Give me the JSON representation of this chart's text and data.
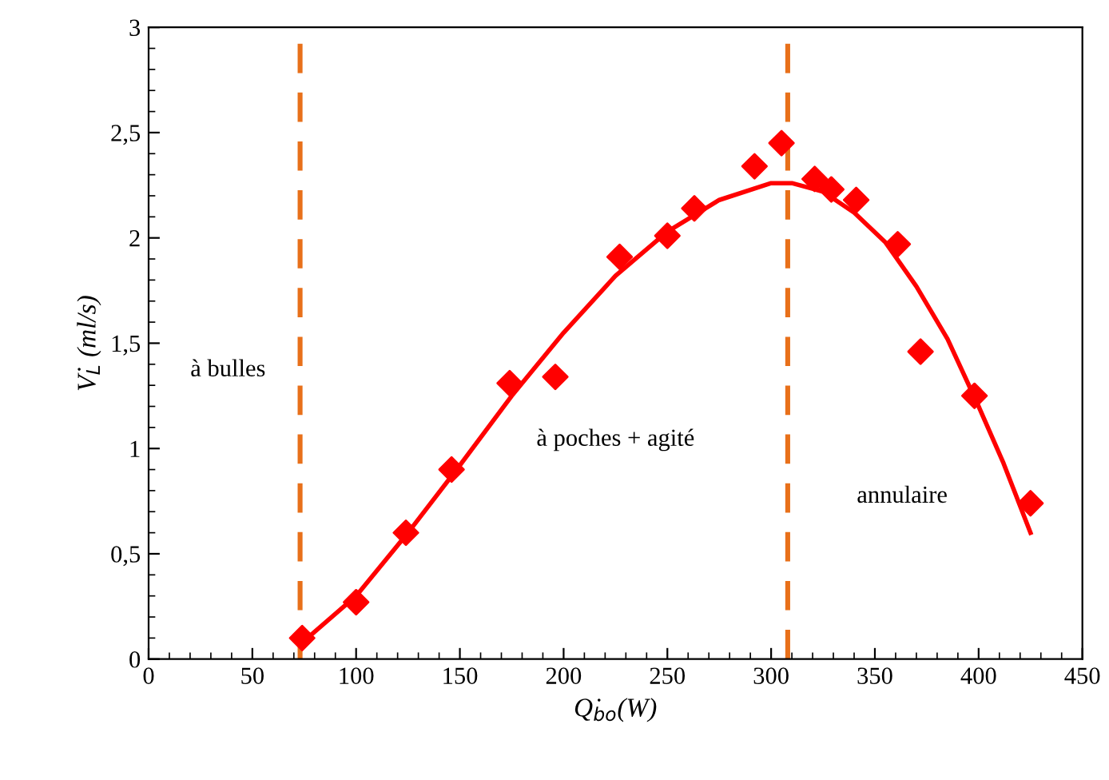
{
  "chart_data": {
    "type": "scatter",
    "xlabel": "Q̇$_{bo}$(W)",
    "ylabel": "V̇$_{L}$ (ml/s)",
    "series": [
      {
        "color": "#ff0000",
        "marker": "diamond",
        "x": [
          74,
          100,
          124,
          146,
          174,
          196,
          227,
          250,
          263,
          292,
          305,
          321,
          329,
          341,
          361,
          372,
          398,
          425
        ],
        "values": [
          0.1,
          0.27,
          0.6,
          0.9,
          1.31,
          1.34,
          1.91,
          2.01,
          2.14,
          2.34,
          2.45,
          2.28,
          2.23,
          2.18,
          1.97,
          1.46,
          1.25,
          0.74
        ]
      },
      {
        "type": "line",
        "color": "#ff0000",
        "marker": "none",
        "line_style": "solid",
        "x": [
          73,
          100,
          125,
          150,
          175,
          200,
          225,
          250,
          275,
          300,
          310,
          325,
          340,
          355,
          370,
          385,
          400,
          412,
          425
        ],
        "values": [
          0.07,
          0.3,
          0.6,
          0.92,
          1.25,
          1.55,
          1.82,
          2.03,
          2.18,
          2.26,
          2.26,
          2.22,
          2.12,
          1.98,
          1.77,
          1.52,
          1.2,
          0.93,
          0.6
        ]
      }
    ],
    "xlim": [
      0,
      450
    ],
    "xticks": [
      0,
      50,
      100,
      150,
      200,
      250,
      300,
      350,
      400,
      450
    ],
    "ylim": [
      0,
      3
    ],
    "yticks": [
      0,
      {
        "value": 0.5,
        "label": "0,5"
      },
      1,
      {
        "value": 1.5,
        "label": "1,5"
      },
      2,
      {
        "value": 2.5,
        "label": "2,5"
      },
      3
    ],
    "ref_lines": [
      {
        "axis": "x",
        "value": 73,
        "color": "#e8701a",
        "line_style": "dashed"
      },
      {
        "axis": "x",
        "value": 308,
        "color": "#e8701a",
        "line_style": "dashed"
      }
    ],
    "annotations": [
      "à bulles",
      "à poches + agité",
      "annulaire"
    ],
    "grid": false,
    "legend": false
  }
}
